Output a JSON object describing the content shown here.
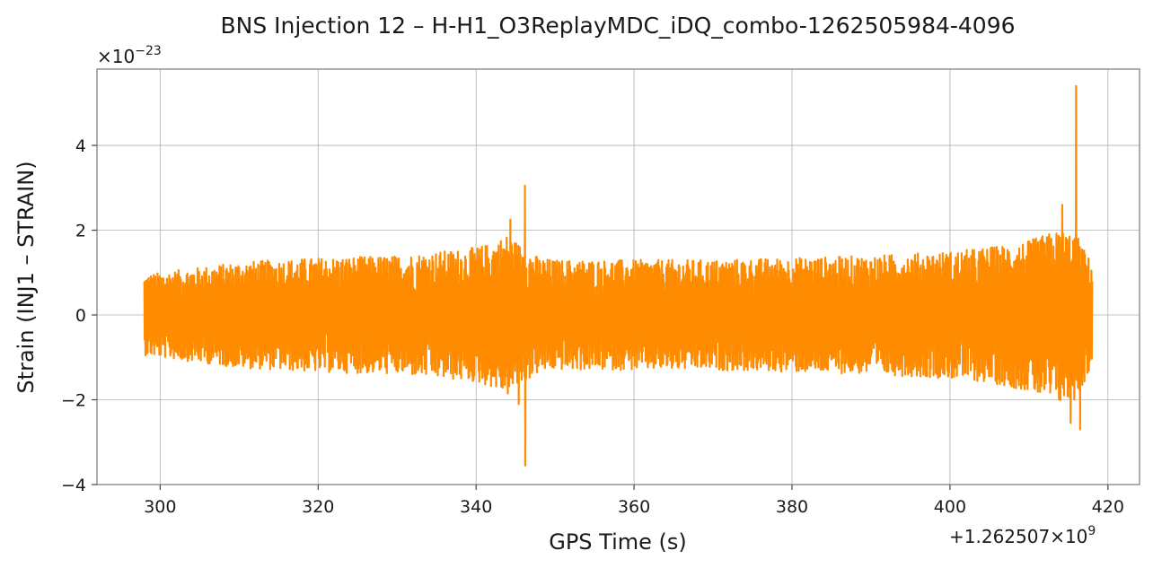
{
  "chart_data": {
    "type": "line",
    "title": "BNS Injection 12 – H-H1_O3ReplayMDC_iDQ_combo-1262505984-4096",
    "xlabel": "GPS Time (s)",
    "ylabel": "Strain (INJ1 – STRAIN)",
    "x_offset_label": "+1.262507×10",
    "x_offset_exp": "9",
    "y_scale_label": "×10",
    "y_scale_exp": "−23",
    "xlim": [
      292,
      424
    ],
    "ylim": [
      -4,
      5.8
    ],
    "x_ticks": [
      300,
      320,
      340,
      360,
      380,
      400,
      420
    ],
    "y_ticks": [
      -4,
      -2,
      0,
      2,
      4
    ],
    "y_tick_labels": [
      "−4",
      "−2",
      "0",
      "2",
      "4"
    ],
    "grid": true,
    "series": [
      {
        "color": "#ff8c00",
        "x_range": [
          298,
          418
        ],
        "envelope_x": [
          298,
          300,
          310,
          320,
          330,
          338,
          340,
          342,
          344,
          346,
          348,
          350,
          360,
          370,
          380,
          390,
          400,
          405,
          410,
          412,
          414,
          416,
          418
        ],
        "envelope_upper": [
          0.95,
          1.0,
          1.25,
          1.35,
          1.4,
          1.55,
          1.6,
          1.7,
          1.9,
          1.6,
          1.35,
          1.3,
          1.3,
          1.3,
          1.35,
          1.4,
          1.5,
          1.6,
          1.75,
          1.9,
          2.0,
          1.9,
          1.2
        ],
        "envelope_lower": [
          -0.95,
          -1.0,
          -1.25,
          -1.35,
          -1.4,
          -1.55,
          -1.6,
          -1.7,
          -1.9,
          -1.6,
          -1.35,
          -1.3,
          -1.3,
          -1.3,
          -1.35,
          -1.4,
          -1.5,
          -1.6,
          -1.8,
          -2.0,
          -2.1,
          -2.0,
          -1.2
        ],
        "peaks": [
          {
            "x": 346.2,
            "y": 3.05
          },
          {
            "x": 346.2,
            "y": -3.55
          },
          {
            "x": 344.3,
            "y": 2.25
          },
          {
            "x": 345.4,
            "y": -2.1
          },
          {
            "x": 416.0,
            "y": 5.4
          },
          {
            "x": 414.2,
            "y": 2.6
          },
          {
            "x": 416.5,
            "y": -2.7
          },
          {
            "x": 415.3,
            "y": -2.55
          }
        ]
      }
    ]
  }
}
